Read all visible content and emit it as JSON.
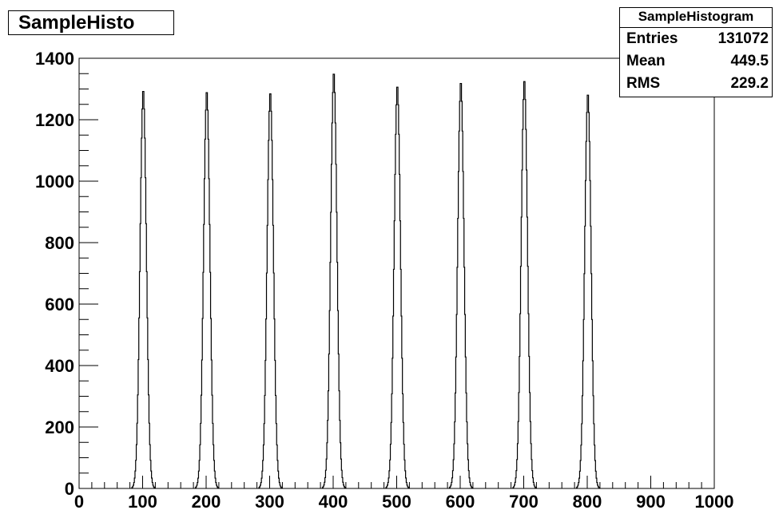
{
  "chart_data": {
    "type": "bar",
    "histogram_style": "step",
    "title": "SampleHisto",
    "xlabel": "",
    "ylabel": "",
    "xlim": [
      0,
      1000
    ],
    "ylim": [
      0,
      1400
    ],
    "grid": false,
    "x_ticks": [
      "0",
      "100",
      "200",
      "300",
      "400",
      "500",
      "600",
      "700",
      "800",
      "900",
      "1000"
    ],
    "y_ticks": [
      "0",
      "200",
      "400",
      "600",
      "800",
      "1000",
      "1200",
      "1400"
    ],
    "peaks": [
      {
        "center": 101,
        "height": 1292
      },
      {
        "center": 201,
        "height": 1288
      },
      {
        "center": 301,
        "height": 1284
      },
      {
        "center": 401,
        "height": 1348
      },
      {
        "center": 501,
        "height": 1306
      },
      {
        "center": 601,
        "height": 1318
      },
      {
        "center": 701,
        "height": 1324
      },
      {
        "center": 801,
        "height": 1280
      }
    ],
    "peak_half_width": 18,
    "stats": {
      "name": "SampleHistogram",
      "rows": [
        {
          "label": "Entries",
          "value": "131072"
        },
        {
          "label": "Mean",
          "value": "449.5"
        },
        {
          "label": "RMS",
          "value": "229.2"
        }
      ]
    }
  }
}
